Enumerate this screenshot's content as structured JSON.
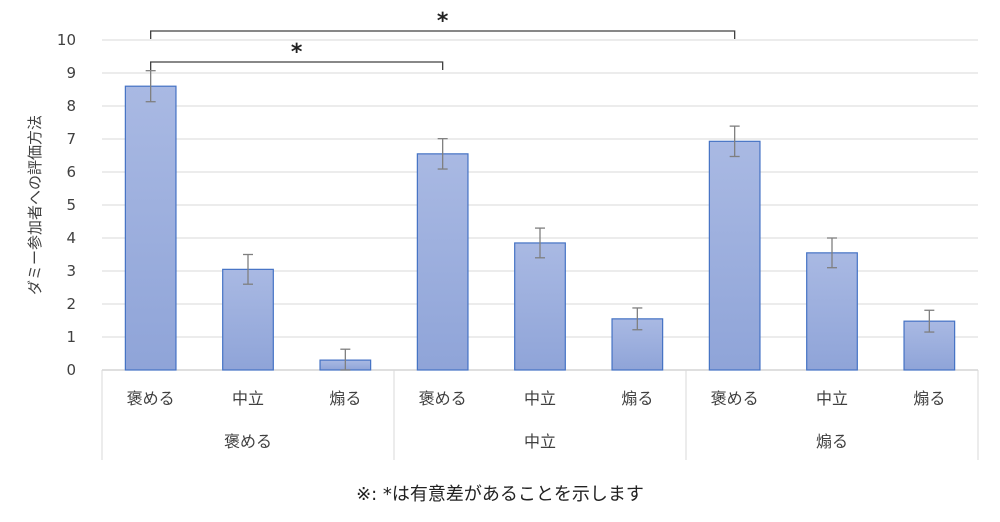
{
  "chart_data": {
    "type": "bar",
    "ylabel": "ダミー参加者への評価方法",
    "ylim": [
      0,
      10
    ],
    "yticks": [
      "0",
      "1",
      "2",
      "3",
      "4",
      "5",
      "6",
      "7",
      "8",
      "9",
      "10"
    ],
    "groups": [
      "褒める",
      "中立",
      "煽る"
    ],
    "categories": [
      "褒める",
      "中立",
      "煽る"
    ],
    "values": [
      [
        8.6,
        3.05,
        0.3
      ],
      [
        6.55,
        3.85,
        1.55
      ],
      [
        6.93,
        3.55,
        1.48
      ]
    ],
    "errors": [
      [
        0.47,
        0.45,
        0.33
      ],
      [
        0.46,
        0.45,
        0.33
      ],
      [
        0.46,
        0.45,
        0.33
      ]
    ],
    "bar_color": "#8fa4d8",
    "bar_border": "#4472c4",
    "significance": [
      {
        "from": [
          0,
          0
        ],
        "to": [
          2,
          0
        ],
        "label": "*"
      },
      {
        "from": [
          0,
          0
        ],
        "to": [
          1,
          0
        ],
        "label": "*"
      }
    ],
    "grid": true
  },
  "footnote": "※: *は有意差があることを示します"
}
